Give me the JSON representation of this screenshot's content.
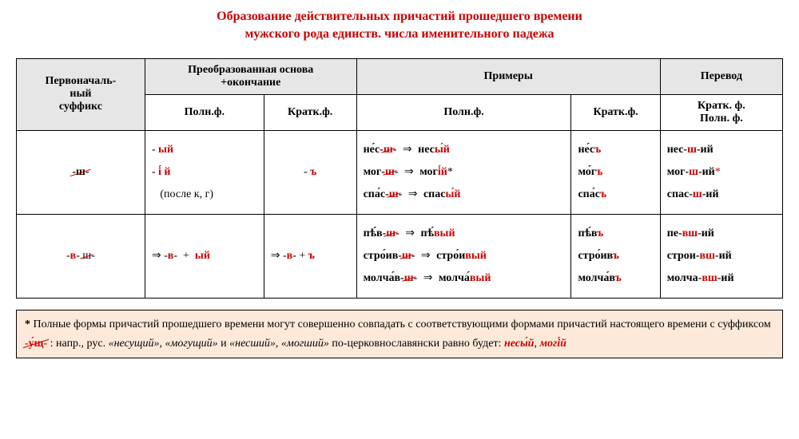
{
  "title": {
    "line1": "Образование действительных причастий прошедшего времени",
    "line2": "мужского рода  единств. числа  именительного  падежа"
  },
  "headers": {
    "col1": "Первоначаль-\nный\nсуффикс",
    "col2": "Преобразованная основа\n+окончание",
    "col3": "Примеры",
    "col4": "Перевод",
    "sub_poln": "Полн.ф.",
    "sub_krat": "Кратк.ф.",
    "sub_trans": "Кратк. ф.\nПолн. ф."
  },
  "rows": [
    {
      "suffix_strike": "-ш-",
      "poln_html": "- <span class='ending'>ый</span><br>- <span class='ending'>і́ й</span><br>&nbsp;&nbsp;&nbsp;(после к, г)",
      "krat_html": "- <span class='ending'>ъ</span>",
      "ex_poln_html": "<span class='bb'>не́с-</span><span class='strike sufx'>ш</span><span class='bb'>-</span> <span class='arrow'>⇒</span> <span class='bb'>нес</span><span class='ending'>ы́й</span><br><span class='bb'>мог-</span><span class='strike sufx'>ш</span><span class='bb'>-</span> <span class='arrow'>⇒</span> <span class='bb'>мог</span><span class='ending'>і́й</span>*<br><span class='bb'>спа́с-</span><span class='strike sufx'>ш</span><span class='bb'>-</span> <span class='arrow'>⇒</span> <span class='bb'>спас</span><span class='ending'>ы́й</span>",
      "ex_krat_html": "<span class='bb'>не́с</span><span class='ending'>ъ</span><br><span class='bb'>мо́г</span><span class='ending'>ъ</span><br><span class='bb'>спа́с</span><span class='ending'>ъ</span>",
      "trans_html": "<span class='b'>нес-</span><span class='sufx'>ш</span><span class='b'>-ий</span><br><span class='b'>мог-</span><span class='sufx'>ш</span><span class='b'>-ий</span><span class='r'>*</span><br><span class='b'>спас-</span><span class='sufx'>ш</span><span class='b'>-ий</span>"
    },
    {
      "suffix_strike_html": "-<span class='sufx'>в</span>- <span class='strike'>ш</span>-",
      "poln_html": "⇒ -<span class='sufx'>в</span>- &nbsp;+&nbsp; <span class='ending'>ый</span>",
      "krat_html": "⇒ -<span class='sufx'>в</span>- + <span class='ending'>ъ</span>",
      "ex_poln_html": "<span class='bb'>пѣ́в-</span><span class='strike sufx'>ш</span><span class='bb'>-</span> <span class='arrow'>⇒</span> <span class='bb'>пѣ́</span><span class='ending'>вый</span><br><span class='bb'>стро́ив-</span><span class='strike sufx'>ш</span><span class='bb'>-</span> <span class='arrow'>⇒</span> <span class='bb'>стро́и</span><span class='ending'>вый</span><br><span class='bb'>молча́в-</span><span class='strike sufx'>ш</span><span class='bb'>-</span> <span class='arrow'>⇒</span> <span class='bb'>молча́</span><span class='ending'>вый</span>",
      "ex_krat_html": "<span class='bb'>пѣ́в</span><span class='ending'>ъ</span><br><span class='bb'>стро́ив</span><span class='ending'>ъ</span><br><span class='bb'>молча́в</span><span class='ending'>ъ</span>",
      "trans_html": "<span class='b'>пе-</span><span class='sufx'>вш</span><span class='b'>-ий</span><br><span class='b'>строи-</span><span class='sufx'>вш</span><span class='b'>-ий</span><br><span class='b'>молча-</span><span class='sufx'>вш</span><span class='b'>-ий</span>"
    }
  ],
  "note_html": "<span class='r b'>*</span> Полные формы причастий прошедшего времени могут совершенно совпадать с соответствующими формами причастий настоящего времени с суффиксом <span class='sufx strike'>-у́щ-</span> : напр., рус. <i>«несущий», «могущий»</i> и <i>«несший», «могший»</i> по-церковнославянски  равно будет: <span class='ending'><i>несы́й</i></span>, <span class='ending'><i>могі́й</i></span>",
  "styling": {
    "accent_color": "#cc0000",
    "header_bg": "#e6e6e6",
    "note_bg": "#fde9d9",
    "border_color": "#000000",
    "font": "Times New Roman",
    "title_fontsize": 16,
    "body_fontsize": 14
  }
}
